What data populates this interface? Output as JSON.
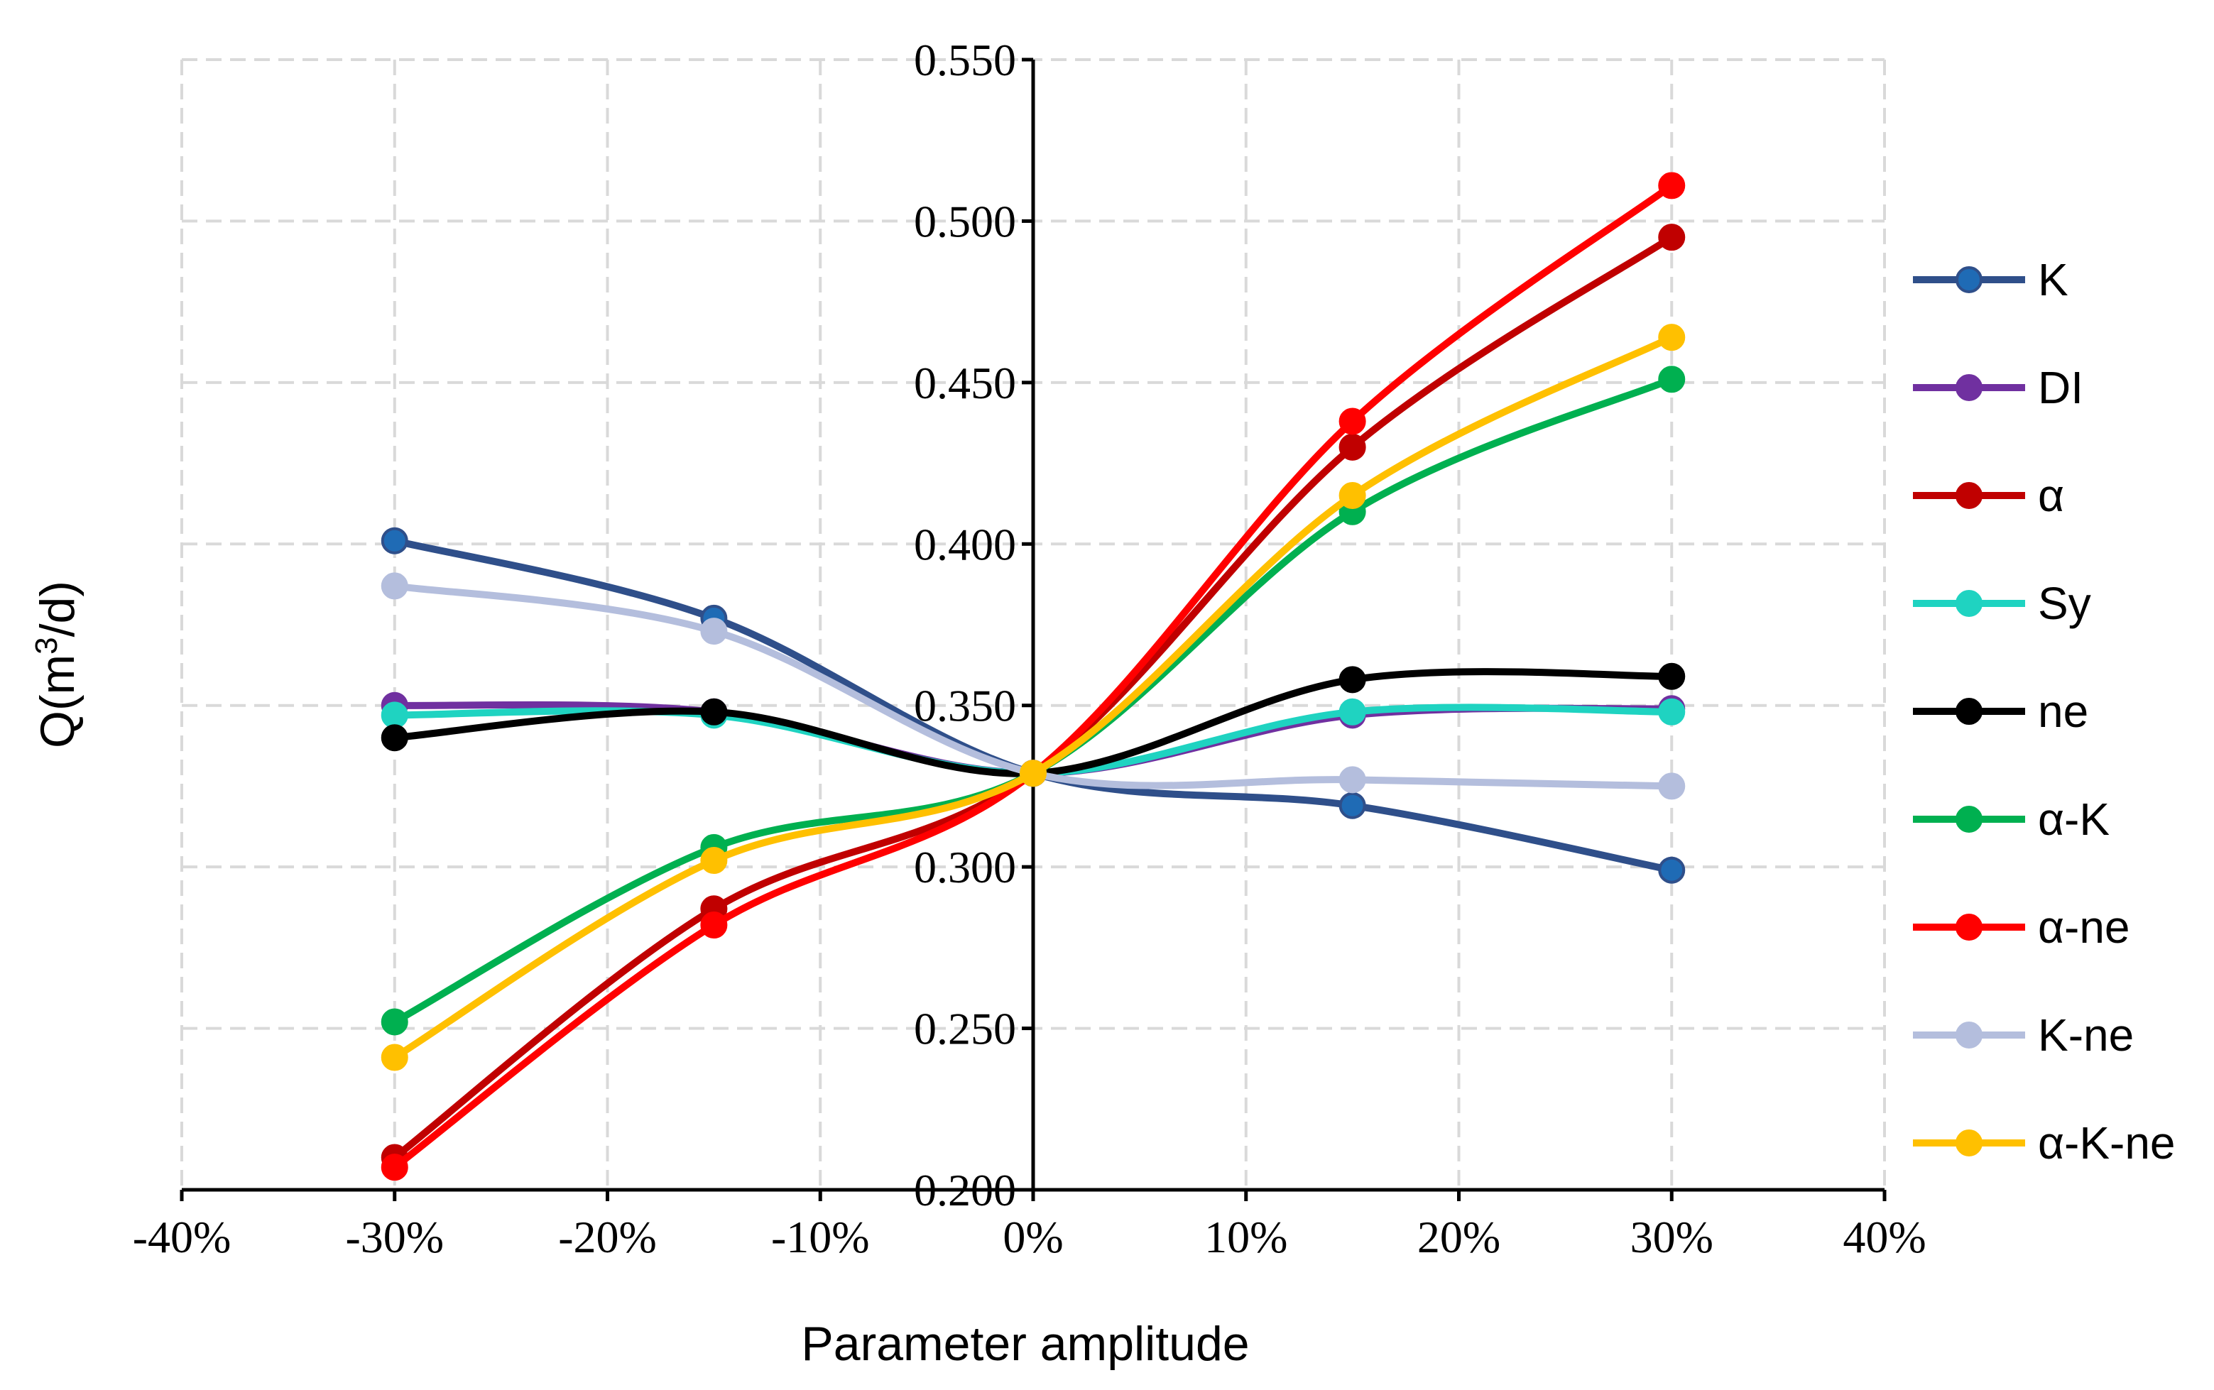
{
  "chart_data": {
    "type": "line",
    "title": "",
    "xlabel": "Parameter amplitude",
    "ylabel_prefix": "Q(m",
    "ylabel_sup": "3",
    "ylabel_suffix": "/d)",
    "x": [
      -30,
      -15,
      0,
      15,
      30
    ],
    "xlim": [
      -40,
      40
    ],
    "ylim": [
      0.2,
      0.55
    ],
    "x_ticks": [
      -40,
      -30,
      -20,
      -10,
      0,
      10,
      20,
      30,
      40
    ],
    "x_tick_labels": [
      "-40%",
      "-30%",
      "-20%",
      "-10%",
      "0%",
      "10%",
      "20%",
      "30%",
      "40%"
    ],
    "y_ticks": [
      0.2,
      0.25,
      0.3,
      0.35,
      0.4,
      0.45,
      0.5,
      0.55
    ],
    "y_tick_labels": [
      "0.200",
      "0.250",
      "0.300",
      "0.350",
      "0.400",
      "0.450",
      "0.500",
      "0.550"
    ],
    "grid": true,
    "legend_position": "right",
    "series": [
      {
        "name": "K",
        "color": "#2F4F8A",
        "marker": "#1F6BB5",
        "values": [
          0.401,
          0.377,
          0.329,
          0.319,
          0.299
        ]
      },
      {
        "name": "DI",
        "color": "#7030A0",
        "marker": "#7030A0",
        "values": [
          0.35,
          0.348,
          0.329,
          0.347,
          0.349
        ]
      },
      {
        "name": "α",
        "color": "#C00000",
        "marker": "#C00000",
        "values": [
          0.21,
          0.287,
          0.329,
          0.43,
          0.495
        ]
      },
      {
        "name": "Sy",
        "color": "#1FD3C1",
        "marker": "#1FD3C1",
        "values": [
          0.347,
          0.347,
          0.329,
          0.348,
          0.348
        ]
      },
      {
        "name": "ne",
        "color": "#000000",
        "marker": "#000000",
        "values": [
          0.34,
          0.348,
          0.329,
          0.358,
          0.359
        ]
      },
      {
        "name": "α-K",
        "color": "#00B050",
        "marker": "#00B050",
        "values": [
          0.252,
          0.306,
          0.329,
          0.41,
          0.451
        ]
      },
      {
        "name": "α-ne",
        "color": "#FF0000",
        "marker": "#FF0000",
        "values": [
          0.207,
          0.282,
          0.329,
          0.438,
          0.511
        ]
      },
      {
        "name": "K-ne",
        "color": "#B4BEDD",
        "marker": "#B4BEDD",
        "values": [
          0.387,
          0.373,
          0.329,
          0.327,
          0.325
        ]
      },
      {
        "name": "α-K-ne",
        "color": "#FFC000",
        "marker": "#FFC000",
        "values": [
          0.241,
          0.302,
          0.329,
          0.415,
          0.464
        ]
      }
    ]
  }
}
